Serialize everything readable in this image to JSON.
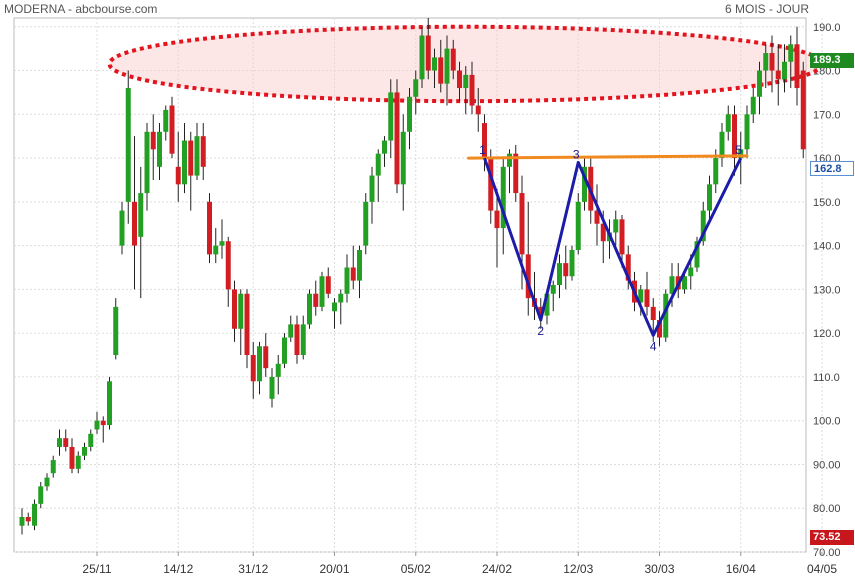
{
  "header": {
    "title": "MODERNA - abcbourse.com",
    "period": "6 MOIS - JOUR"
  },
  "badges": {
    "high": "189.3",
    "last": "162.8",
    "low": "73.52"
  },
  "colors": {
    "up": "#23a023",
    "down": "#d21e23",
    "grid": "#dcdcdc",
    "pattern": "#1c1ca8",
    "neckline": "#f08a1e",
    "ellipse": "#e4141e"
  },
  "chart_data": {
    "type": "candlestick",
    "ylim": [
      70,
      192
    ],
    "y_ticks": [
      70,
      80,
      90,
      100,
      110,
      120,
      130,
      140,
      150,
      160,
      170,
      180,
      190
    ],
    "y_tick_labels": [
      "70.00",
      "80.00",
      "90.00",
      "100.0",
      "110.0",
      "120.0",
      "130.0",
      "140.0",
      "150.0",
      "160.0",
      "170.0",
      "180.0",
      "190.0"
    ],
    "x_tick_labels": [
      {
        "label": "25/11",
        "index": 12
      },
      {
        "label": "14/12",
        "index": 25
      },
      {
        "label": "31/12",
        "index": 37
      },
      {
        "label": "20/01",
        "index": 50
      },
      {
        "label": "05/02",
        "index": 63
      },
      {
        "label": "24/02",
        "index": 76
      },
      {
        "label": "12/03",
        "index": 89
      },
      {
        "label": "30/03",
        "index": 102
      },
      {
        "label": "16/04",
        "index": 115
      },
      {
        "label": "04/05",
        "index": 128
      }
    ],
    "candles": [
      [
        76,
        80,
        74,
        78
      ],
      [
        78,
        79,
        76,
        77
      ],
      [
        76,
        82,
        75,
        81
      ],
      [
        81,
        86,
        80,
        85
      ],
      [
        85,
        88,
        84,
        87
      ],
      [
        88,
        92,
        87,
        91
      ],
      [
        94,
        98,
        92,
        96
      ],
      [
        96,
        98,
        93,
        94
      ],
      [
        94,
        96,
        88,
        89
      ],
      [
        89,
        93,
        88,
        92
      ],
      [
        92,
        95,
        91,
        94
      ],
      [
        94,
        98,
        93,
        97
      ],
      [
        98,
        102,
        97,
        100
      ],
      [
        100,
        101,
        95,
        99
      ],
      [
        99,
        110,
        98,
        109
      ],
      [
        115,
        128,
        114,
        126
      ],
      [
        140,
        150,
        138,
        148
      ],
      [
        150,
        180,
        145,
        176
      ],
      [
        150,
        165,
        130,
        140
      ],
      [
        142,
        158,
        128,
        152
      ],
      [
        152,
        168,
        148,
        166
      ],
      [
        166,
        170,
        155,
        162
      ],
      [
        158,
        168,
        155,
        166
      ],
      [
        166,
        172,
        164,
        171
      ],
      [
        172,
        174,
        160,
        161
      ],
      [
        158,
        166,
        150,
        154
      ],
      [
        154,
        168,
        152,
        164
      ],
      [
        164,
        166,
        148,
        156
      ],
      [
        156,
        168,
        155,
        165
      ],
      [
        165,
        168,
        155,
        158
      ],
      [
        150,
        152,
        136,
        138
      ],
      [
        138,
        144,
        136,
        140
      ],
      [
        140,
        146,
        137,
        141
      ],
      [
        141,
        142,
        126,
        130
      ],
      [
        130,
        132,
        118,
        121
      ],
      [
        121,
        130,
        115,
        129
      ],
      [
        129,
        130,
        112,
        115
      ],
      [
        115,
        118,
        105,
        109
      ],
      [
        109,
        118,
        106,
        117
      ],
      [
        117,
        120,
        110,
        112
      ],
      [
        105,
        112,
        103,
        110
      ],
      [
        110,
        115,
        106,
        113
      ],
      [
        113,
        120,
        112,
        119
      ],
      [
        119,
        124,
        118,
        122
      ],
      [
        122,
        124,
        113,
        115
      ],
      [
        115,
        124,
        114,
        122
      ],
      [
        122,
        130,
        121,
        129
      ],
      [
        129,
        132,
        124,
        126
      ],
      [
        126,
        134,
        125,
        133
      ],
      [
        133,
        135,
        128,
        129
      ],
      [
        125,
        128,
        121,
        127
      ],
      [
        127,
        130,
        122,
        129
      ],
      [
        129,
        138,
        127,
        135
      ],
      [
        135,
        140,
        130,
        132
      ],
      [
        132,
        140,
        128,
        139
      ],
      [
        140,
        152,
        138,
        150
      ],
      [
        150,
        158,
        145,
        156
      ],
      [
        156,
        162,
        150,
        161
      ],
      [
        161,
        165,
        158,
        164
      ],
      [
        164,
        178,
        160,
        175
      ],
      [
        175,
        178,
        152,
        154
      ],
      [
        154,
        170,
        148,
        166
      ],
      [
        166,
        176,
        162,
        174
      ],
      [
        174,
        180,
        170,
        178
      ],
      [
        178,
        190,
        176,
        188
      ],
      [
        188,
        192,
        178,
        180
      ],
      [
        180,
        185,
        176,
        183
      ],
      [
        183,
        187,
        175,
        177
      ],
      [
        177,
        188,
        172,
        185
      ],
      [
        185,
        187,
        178,
        180
      ],
      [
        180,
        182,
        173,
        176
      ],
      [
        176,
        181,
        170,
        179
      ],
      [
        179,
        182,
        170,
        172
      ],
      [
        172,
        176,
        166,
        170
      ],
      [
        168,
        170,
        157,
        160
      ],
      [
        160,
        162,
        145,
        148
      ],
      [
        148,
        153,
        135,
        144
      ],
      [
        144,
        160,
        138,
        158
      ],
      [
        158,
        162,
        152,
        161
      ],
      [
        161,
        163,
        150,
        152
      ],
      [
        152,
        156,
        130,
        138
      ],
      [
        138,
        150,
        124,
        128
      ],
      [
        128,
        134,
        123,
        126
      ],
      [
        126,
        128,
        121,
        124
      ],
      [
        124,
        130,
        122,
        129
      ],
      [
        129,
        132,
        125,
        131
      ],
      [
        131,
        138,
        128,
        136
      ],
      [
        136,
        140,
        130,
        133
      ],
      [
        133,
        140,
        132,
        139
      ],
      [
        139,
        152,
        138,
        150
      ],
      [
        150,
        160,
        148,
        158
      ],
      [
        158,
        160,
        145,
        148
      ],
      [
        148,
        154,
        140,
        145
      ],
      [
        145,
        148,
        136,
        141
      ],
      [
        141,
        146,
        137,
        143
      ],
      [
        143,
        148,
        140,
        146
      ],
      [
        146,
        147,
        135,
        138
      ],
      [
        138,
        140,
        130,
        132
      ],
      [
        132,
        134,
        125,
        127
      ],
      [
        127,
        131,
        124,
        130
      ],
      [
        130,
        134,
        124,
        126
      ],
      [
        126,
        128,
        118,
        123
      ],
      [
        123,
        125,
        117,
        119
      ],
      [
        119,
        130,
        118,
        129
      ],
      [
        129,
        136,
        126,
        133
      ],
      [
        133,
        136,
        128,
        130
      ],
      [
        130,
        134,
        129,
        133
      ],
      [
        133,
        138,
        130,
        135
      ],
      [
        135,
        142,
        134,
        141
      ],
      [
        141,
        150,
        140,
        148
      ],
      [
        148,
        156,
        146,
        154
      ],
      [
        154,
        162,
        152,
        160
      ],
      [
        160,
        168,
        158,
        166
      ],
      [
        166,
        172,
        164,
        170
      ],
      [
        170,
        172,
        156,
        160
      ],
      [
        160,
        166,
        154,
        162
      ],
      [
        162,
        172,
        160,
        170
      ],
      [
        170,
        176,
        168,
        174
      ],
      [
        174,
        182,
        170,
        180
      ],
      [
        180,
        186,
        176,
        184
      ],
      [
        184,
        188,
        175,
        180
      ],
      [
        180,
        186,
        172,
        178
      ],
      [
        178,
        186,
        175,
        182
      ],
      [
        182,
        188,
        176,
        186
      ],
      [
        186,
        190,
        172,
        176
      ],
      [
        180,
        182,
        160,
        162
      ]
    ],
    "annotations": {
      "neckline": {
        "from": [
          74,
          160
        ],
        "to": [
          116,
          160.5
        ]
      },
      "pattern_points": [
        {
          "label": "1",
          "index": 74,
          "value": 160
        },
        {
          "label": "2",
          "index": 83,
          "value": 123
        },
        {
          "label": "3",
          "index": 89,
          "value": 159
        },
        {
          "label": "4",
          "index": 101,
          "value": 119.5
        },
        {
          "label": "5",
          "index": 115,
          "value": 160
        }
      ],
      "resistance_zone": {
        "center_index": 71,
        "center_value": 181.5,
        "half_width_index": 57,
        "half_height_value": 8.5
      }
    }
  }
}
